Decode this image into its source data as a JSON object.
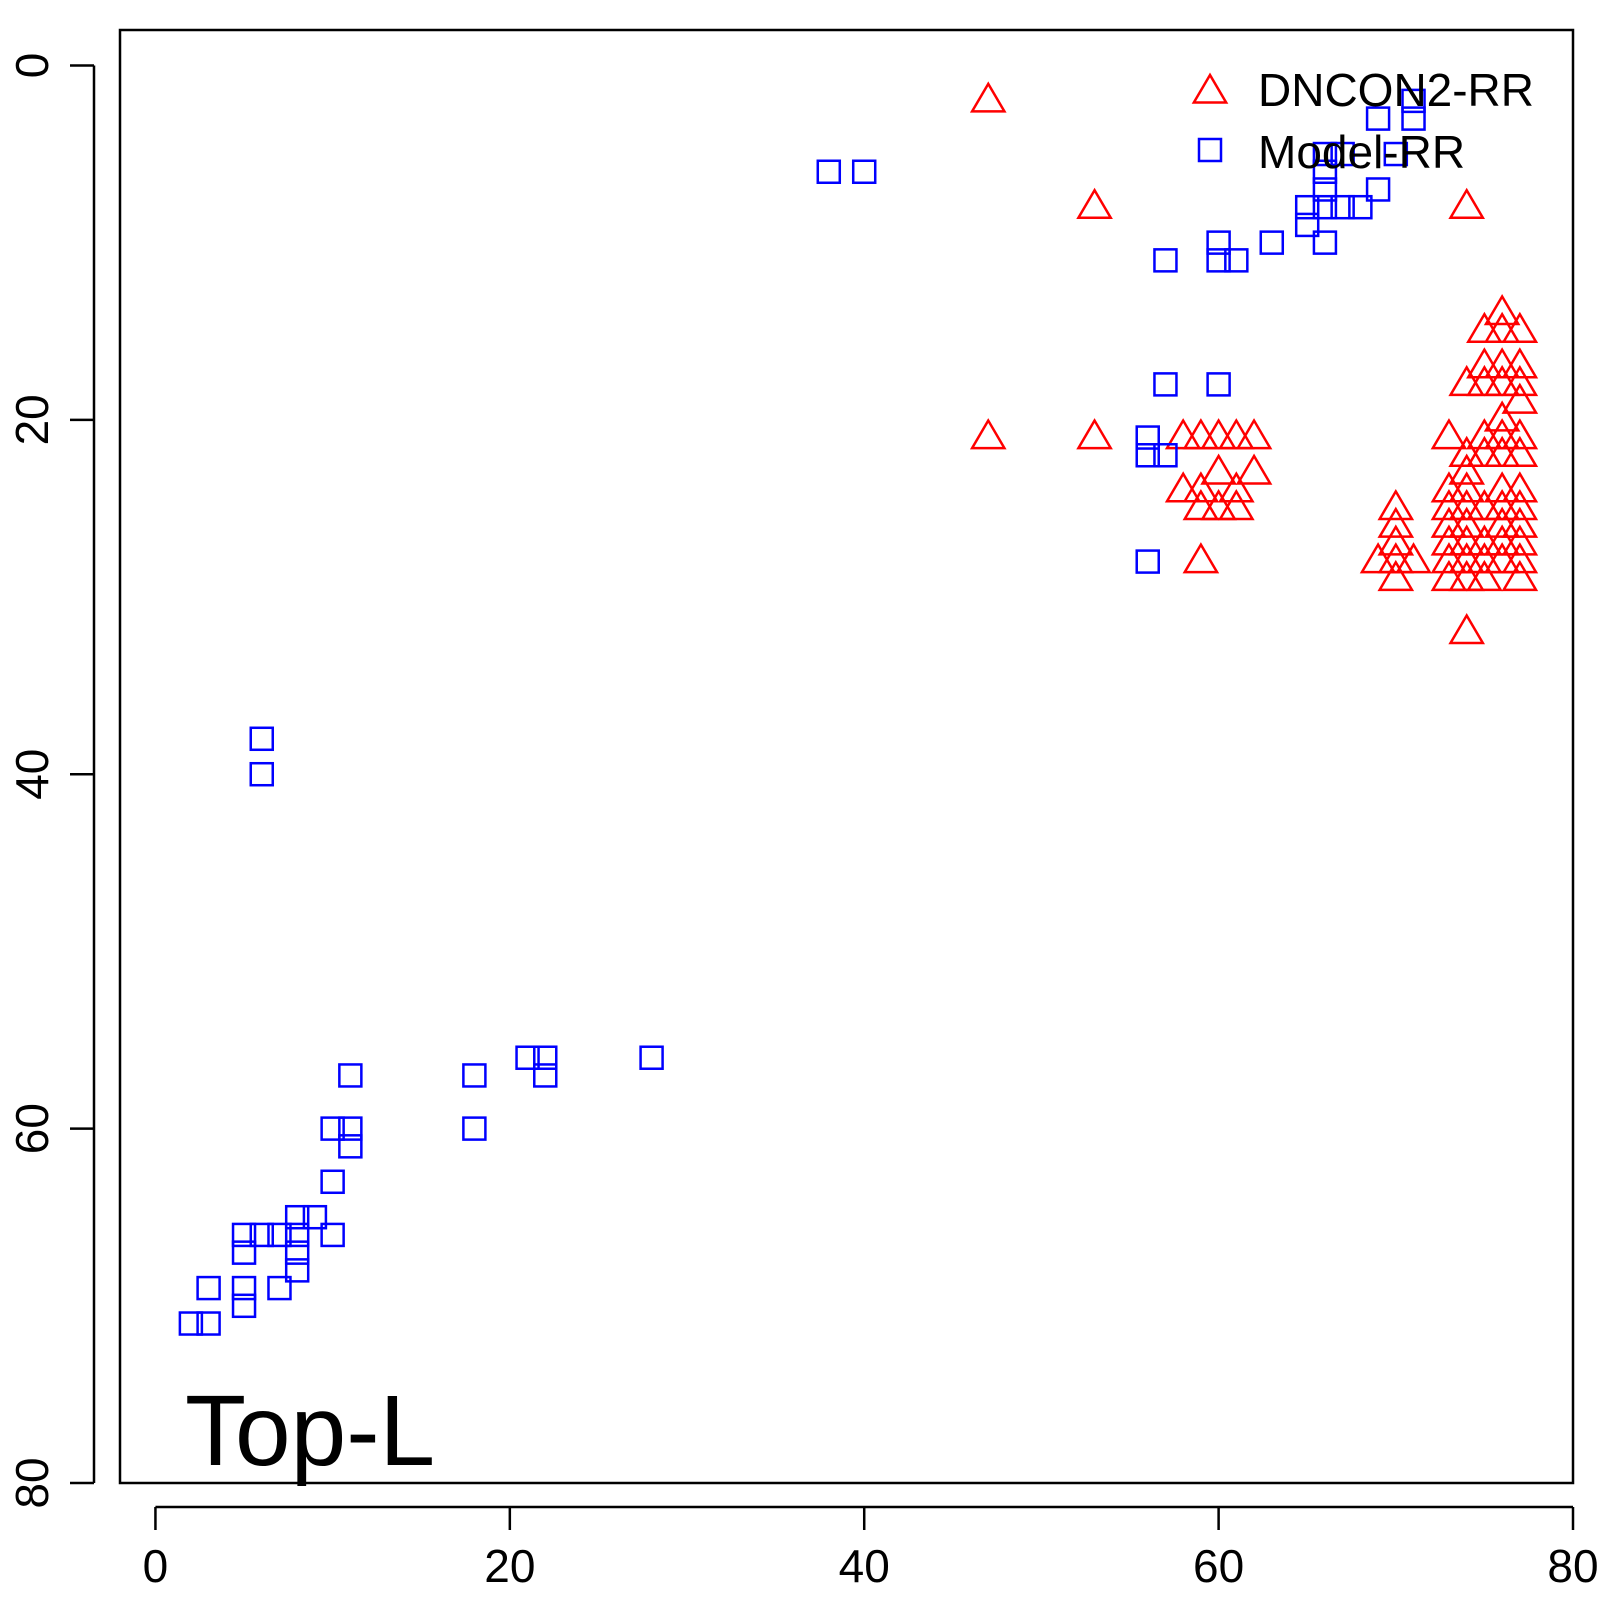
{
  "chart_data": {
    "type": "scatter",
    "title": "",
    "xlabel": "",
    "ylabel": "",
    "xlim": [
      -2,
      80
    ],
    "ylim": [
      80,
      -2
    ],
    "y_reversed": true,
    "x_ticks": [
      "0",
      "20",
      "40",
      "60",
      "80"
    ],
    "y_ticks": [
      "0",
      "20",
      "40",
      "60",
      "80"
    ],
    "grid": false,
    "legend_position": "top-right",
    "annotation": "Top-L",
    "series": [
      {
        "name": "DNCON2-RR",
        "marker": "triangle",
        "color": "#ff0000",
        "points": [
          [
            47,
            2
          ],
          [
            53,
            8
          ],
          [
            74,
            8
          ],
          [
            47,
            21
          ],
          [
            53,
            21
          ],
          [
            58,
            21
          ],
          [
            59,
            21
          ],
          [
            60,
            21
          ],
          [
            61,
            21
          ],
          [
            62,
            21
          ],
          [
            60,
            23
          ],
          [
            62,
            23
          ],
          [
            58,
            24
          ],
          [
            59,
            24
          ],
          [
            61,
            24
          ],
          [
            59,
            25
          ],
          [
            60,
            25
          ],
          [
            61,
            25
          ],
          [
            59,
            28
          ],
          [
            76,
            14
          ],
          [
            75,
            15
          ],
          [
            76,
            15
          ],
          [
            77,
            15
          ],
          [
            75,
            17
          ],
          [
            76,
            17
          ],
          [
            77,
            17
          ],
          [
            74,
            18
          ],
          [
            75,
            18
          ],
          [
            76,
            18
          ],
          [
            77,
            18
          ],
          [
            77,
            19
          ],
          [
            76,
            20
          ],
          [
            73,
            21
          ],
          [
            75,
            21
          ],
          [
            76,
            21
          ],
          [
            77,
            21
          ],
          [
            74,
            22
          ],
          [
            75,
            22
          ],
          [
            76,
            22
          ],
          [
            77,
            22
          ],
          [
            74,
            23
          ],
          [
            73,
            24
          ],
          [
            74,
            24
          ],
          [
            76,
            24
          ],
          [
            77,
            24
          ],
          [
            73,
            25
          ],
          [
            74,
            25
          ],
          [
            75,
            25
          ],
          [
            76,
            25
          ],
          [
            77,
            25
          ],
          [
            70,
            25
          ],
          [
            70,
            26
          ],
          [
            73,
            26
          ],
          [
            74,
            26
          ],
          [
            76,
            26
          ],
          [
            77,
            26
          ],
          [
            70,
            27
          ],
          [
            73,
            27
          ],
          [
            74,
            27
          ],
          [
            75,
            27
          ],
          [
            76,
            27
          ],
          [
            77,
            27
          ],
          [
            69,
            28
          ],
          [
            70,
            28
          ],
          [
            71,
            28
          ],
          [
            73,
            28
          ],
          [
            74,
            28
          ],
          [
            75,
            28
          ],
          [
            76,
            28
          ],
          [
            77,
            28
          ],
          [
            70,
            29
          ],
          [
            73,
            29
          ],
          [
            74,
            29
          ],
          [
            75,
            29
          ],
          [
            77,
            29
          ],
          [
            74,
            32
          ]
        ]
      },
      {
        "name": "Model-RR",
        "marker": "square",
        "color": "#0000ff",
        "points": [
          [
            71,
            2
          ],
          [
            69,
            3
          ],
          [
            71,
            3
          ],
          [
            66,
            5
          ],
          [
            67,
            5
          ],
          [
            70,
            5
          ],
          [
            66,
            6
          ],
          [
            38,
            6
          ],
          [
            40,
            6
          ],
          [
            66,
            7
          ],
          [
            69,
            7
          ],
          [
            65,
            8
          ],
          [
            66,
            8
          ],
          [
            67,
            8
          ],
          [
            68,
            8
          ],
          [
            65,
            9
          ],
          [
            60,
            10
          ],
          [
            63,
            10
          ],
          [
            66,
            10
          ],
          [
            57,
            11
          ],
          [
            60,
            11
          ],
          [
            61,
            11
          ],
          [
            57,
            18
          ],
          [
            60,
            18
          ],
          [
            56,
            21
          ],
          [
            56,
            22
          ],
          [
            57,
            22
          ],
          [
            56,
            28
          ],
          [
            6,
            38
          ],
          [
            6,
            40
          ],
          [
            21,
            56
          ],
          [
            22,
            56
          ],
          [
            28,
            56
          ],
          [
            11,
            57
          ],
          [
            18,
            57
          ],
          [
            22,
            57
          ],
          [
            10,
            60
          ],
          [
            11,
            60
          ],
          [
            18,
            60
          ],
          [
            11,
            61
          ],
          [
            10,
            63
          ],
          [
            8,
            65
          ],
          [
            9,
            65
          ],
          [
            5,
            66
          ],
          [
            6,
            66
          ],
          [
            7,
            66
          ],
          [
            8,
            66
          ],
          [
            10,
            66
          ],
          [
            5,
            67
          ],
          [
            8,
            67
          ],
          [
            8,
            68
          ],
          [
            3,
            69
          ],
          [
            5,
            69
          ],
          [
            7,
            69
          ],
          [
            5,
            70
          ],
          [
            2,
            71
          ],
          [
            3,
            71
          ]
        ]
      }
    ]
  }
}
